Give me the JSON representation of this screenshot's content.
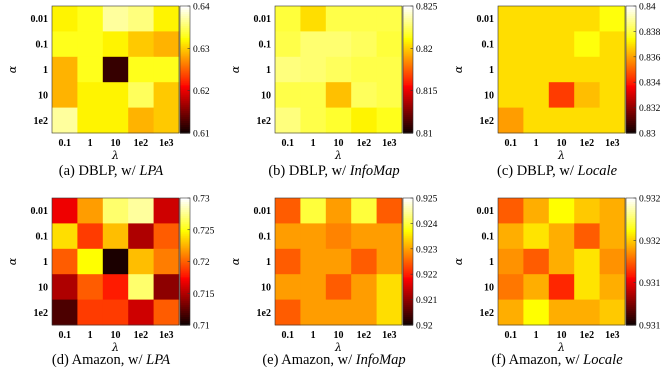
{
  "chart_data": [
    {
      "type": "heatmap",
      "caption": {
        "prefix": "(a)  DBLP, w/ ",
        "method": "LPA"
      },
      "xlabel": "λ",
      "ylabel": "α",
      "x_categories": [
        "0.1",
        "1",
        "10",
        "1e2",
        "1e3"
      ],
      "y_categories": [
        "0.01",
        "0.1",
        "1",
        "10",
        "1e2"
      ],
      "colorbar": {
        "range": [
          0.61,
          0.64
        ],
        "ticks": [
          "0.64",
          "0.63",
          "0.62",
          "0.61"
        ]
      },
      "values": [
        [
          0.632,
          0.633,
          0.637,
          0.636,
          0.632
        ],
        [
          0.633,
          0.633,
          0.632,
          0.63,
          0.629
        ],
        [
          0.629,
          0.633,
          0.612,
          0.633,
          0.633
        ],
        [
          0.629,
          0.632,
          0.632,
          0.635,
          0.63
        ],
        [
          0.637,
          0.632,
          0.632,
          0.629,
          0.63
        ]
      ]
    },
    {
      "type": "heatmap",
      "caption": {
        "prefix": "(b)  DBLP, w/ ",
        "method": "InfoMap"
      },
      "xlabel": "λ",
      "ylabel": "α",
      "x_categories": [
        "0.1",
        "1",
        "10",
        "1e2",
        "1e3"
      ],
      "y_categories": [
        "0.01",
        "0.1",
        "1",
        "10",
        "1e2"
      ],
      "colorbar": {
        "range": [
          0.81,
          0.825
        ],
        "ticks": [
          "0.825",
          "0.82",
          "0.815",
          "0.81"
        ]
      },
      "values": [
        [
          0.822,
          0.8205,
          0.8222,
          0.8222,
          0.8222
        ],
        [
          0.8222,
          0.8228,
          0.8228,
          0.8225,
          0.822
        ],
        [
          0.823,
          0.8228,
          0.8225,
          0.8222,
          0.8222
        ],
        [
          0.8222,
          0.8222,
          0.8198,
          0.8225,
          0.8222
        ],
        [
          0.823,
          0.8222,
          0.8218,
          0.821,
          0.8215
        ]
      ]
    },
    {
      "type": "heatmap",
      "caption": {
        "prefix": "(c)  DBLP, w/ ",
        "method": "Locale"
      },
      "xlabel": "λ",
      "ylabel": "α",
      "x_categories": [
        "0.1",
        "1",
        "10",
        "1e2",
        "1e3"
      ],
      "y_categories": [
        "0.01",
        "0.1",
        "1",
        "10",
        "1e2"
      ],
      "colorbar": {
        "range": [
          0.83,
          0.84
        ],
        "ticks": [
          "0.84",
          "0.838",
          "0.836",
          "0.834",
          "0.832",
          "0.83"
        ]
      },
      "values": [
        [
          0.837,
          0.837,
          0.837,
          0.837,
          0.8375
        ],
        [
          0.837,
          0.837,
          0.837,
          0.8375,
          0.837
        ],
        [
          0.837,
          0.837,
          0.837,
          0.837,
          0.837
        ],
        [
          0.837,
          0.837,
          0.8345,
          0.8365,
          0.837
        ],
        [
          0.836,
          0.837,
          0.837,
          0.837,
          0.837
        ]
      ]
    },
    {
      "type": "heatmap",
      "caption": {
        "prefix": "(d)  Amazon, w/ ",
        "method": "LPA"
      },
      "xlabel": "λ",
      "ylabel": "α",
      "x_categories": [
        "0.1",
        "1",
        "10",
        "1e2",
        "1e3"
      ],
      "y_categories": [
        "0.01",
        "0.1",
        "1",
        "10",
        "1e2"
      ],
      "colorbar": {
        "range": [
          0.71,
          0.73
        ],
        "ticks": [
          "0.73",
          "0.725",
          "0.72",
          "0.715",
          "0.71"
        ]
      },
      "values": [
        [
          0.717,
          0.722,
          0.727,
          0.728,
          0.716
        ],
        [
          0.724,
          0.719,
          0.723,
          0.715,
          0.72
        ],
        [
          0.72,
          0.725,
          0.7105,
          0.723,
          0.721
        ],
        [
          0.715,
          0.72,
          0.718,
          0.727,
          0.714
        ],
        [
          0.712,
          0.719,
          0.719,
          0.716,
          0.72
        ]
      ]
    },
    {
      "type": "heatmap",
      "caption": {
        "prefix": "(e)  Amazon, w/ ",
        "method": "InfoMap"
      },
      "xlabel": "λ",
      "ylabel": "α",
      "x_categories": [
        "0.1",
        "1",
        "10",
        "1e2",
        "1e3"
      ],
      "y_categories": [
        "0.01",
        "0.1",
        "1",
        "10",
        "1e2"
      ],
      "colorbar": {
        "range": [
          0.92,
          0.925
        ],
        "ticks": [
          "0.925",
          "0.924",
          "0.923",
          "0.922",
          "0.921",
          "0.92"
        ]
      },
      "values": [
        [
          0.9225,
          0.924,
          0.923,
          0.924,
          0.9225
        ],
        [
          0.923,
          0.923,
          0.9228,
          0.923,
          0.923
        ],
        [
          0.9225,
          0.923,
          0.923,
          0.9225,
          0.923
        ],
        [
          0.923,
          0.923,
          0.9225,
          0.923,
          0.9235
        ],
        [
          0.9225,
          0.923,
          0.923,
          0.923,
          0.9235
        ]
      ]
    },
    {
      "type": "heatmap",
      "caption": {
        "prefix": "(f)  Amazon, w/ ",
        "method": "Locale"
      },
      "xlabel": "λ",
      "ylabel": "α",
      "x_categories": [
        "0.1",
        "1",
        "10",
        "1e2",
        "1e3"
      ],
      "y_categories": [
        "0.01",
        "0.1",
        "1",
        "10",
        "1e2"
      ],
      "colorbar": {
        "range": [
          0.931,
          0.9322
        ],
        "ticks": [
          "0.932",
          "0.932",
          "0.931",
          "0.931"
        ]
      },
      "values": [
        [
          0.9316,
          0.93175,
          0.9319,
          0.9318,
          0.93175
        ],
        [
          0.93175,
          0.93185,
          0.93175,
          0.9316,
          0.93175
        ],
        [
          0.9317,
          0.9316,
          0.93175,
          0.93185,
          0.9317
        ],
        [
          0.93165,
          0.93175,
          0.9315,
          0.93185,
          0.93175
        ],
        [
          0.93175,
          0.9319,
          0.93175,
          0.93175,
          0.9318
        ]
      ]
    }
  ]
}
